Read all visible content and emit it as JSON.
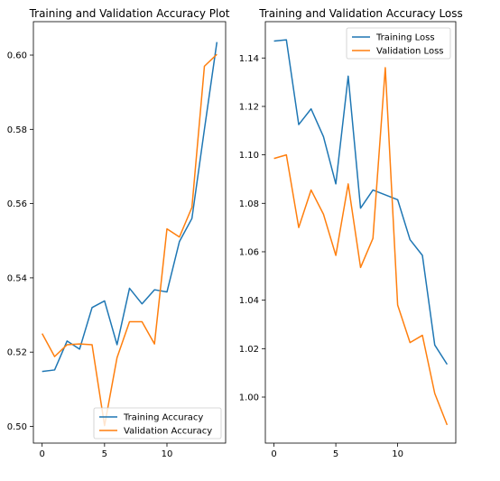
{
  "chart_data": [
    {
      "type": "line",
      "title": "Training and Validation Accuracy Plot",
      "xlabel": "",
      "ylabel": "",
      "xlim": [
        -0.7,
        14.7
      ],
      "ylim": [
        0.4955,
        0.609
      ],
      "xticks": [
        0,
        5,
        10
      ],
      "yticks": [
        0.5,
        0.52,
        0.54,
        0.56,
        0.58,
        0.6
      ],
      "ytick_labels": [
        "0.50",
        "0.52",
        "0.54",
        "0.56",
        "0.58",
        "0.60"
      ],
      "grid": false,
      "legend_position": "lower right",
      "x": [
        0,
        1,
        2,
        3,
        4,
        5,
        6,
        7,
        8,
        9,
        10,
        11,
        12,
        13,
        14
      ],
      "series": [
        {
          "name": "Training Accuracy",
          "color": "#1f77b4",
          "values": [
            0.5148,
            0.5152,
            0.523,
            0.5208,
            0.532,
            0.5338,
            0.522,
            0.5372,
            0.533,
            0.5368,
            0.5362,
            0.5498,
            0.556,
            0.58,
            0.6035
          ]
        },
        {
          "name": "Validation Accuracy",
          "color": "#ff7f0e",
          "values": [
            0.525,
            0.5188,
            0.522,
            0.5222,
            0.522,
            0.5002,
            0.5185,
            0.5282,
            0.5282,
            0.5222,
            0.5532,
            0.551,
            0.559,
            0.597,
            0.6002
          ]
        }
      ]
    },
    {
      "type": "line",
      "title": "Training and Validation Accuracy Loss",
      "xlabel": "",
      "ylabel": "",
      "xlim": [
        -0.7,
        14.7
      ],
      "ylim": [
        0.981,
        1.155
      ],
      "xticks": [
        0,
        5,
        10
      ],
      "yticks": [
        1.0,
        1.02,
        1.04,
        1.06,
        1.08,
        1.1,
        1.12,
        1.14
      ],
      "ytick_labels": [
        "1.00",
        "1.02",
        "1.04",
        "1.06",
        "1.08",
        "1.10",
        "1.12",
        "1.14"
      ],
      "grid": false,
      "legend_position": "upper right",
      "x": [
        0,
        1,
        2,
        3,
        4,
        5,
        6,
        7,
        8,
        9,
        10,
        11,
        12,
        13,
        14
      ],
      "series": [
        {
          "name": "Training Loss",
          "color": "#1f77b4",
          "values": [
            1.147,
            1.1475,
            1.1125,
            1.119,
            1.1075,
            1.088,
            1.1325,
            1.078,
            1.0855,
            1.0835,
            1.0815,
            1.065,
            1.0585,
            1.0215,
            1.0135
          ]
        },
        {
          "name": "Validation Loss",
          "color": "#ff7f0e",
          "values": [
            1.0985,
            1.1,
            1.07,
            1.0855,
            1.0755,
            1.0585,
            1.088,
            1.0535,
            1.0655,
            1.136,
            1.038,
            1.0225,
            1.0255,
            1.0015,
            0.9885
          ]
        }
      ]
    }
  ]
}
